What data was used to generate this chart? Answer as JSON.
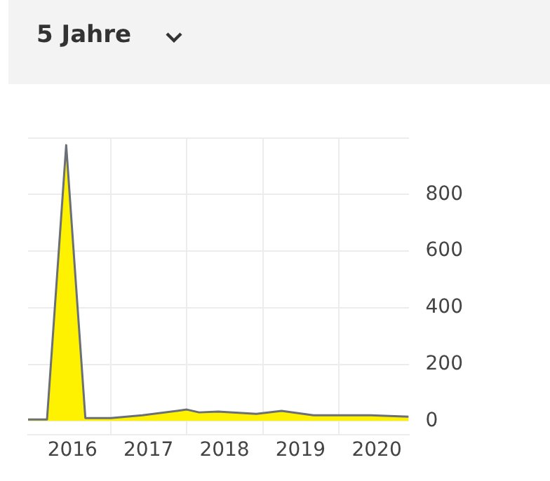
{
  "chart_data": {
    "type": "area",
    "title": "5 Jahre",
    "x": [
      "2015-12",
      "2016-03",
      "2016-06",
      "2016-09",
      "2017-01",
      "2017-06",
      "2018-01",
      "2018-03",
      "2018-06",
      "2018-12",
      "2019-04",
      "2019-09",
      "2020-01",
      "2020-06",
      "2020-12"
    ],
    "series": [
      {
        "color": "#fff200",
        "values": [
          5,
          5,
          975,
          10,
          10,
          20,
          40,
          30,
          33,
          25,
          35,
          20,
          20,
          20,
          15
        ]
      }
    ],
    "xlim": [
      "2015-12",
      "2020-12"
    ],
    "xticks": [
      {
        "value": "2016-07",
        "label": "2016"
      },
      {
        "value": "2017-01",
        "label": null
      },
      {
        "value": "2017-07",
        "label": "2017"
      },
      {
        "value": "2018-01",
        "label": null
      },
      {
        "value": "2018-07",
        "label": "2018"
      },
      {
        "value": "2019-01",
        "label": null
      },
      {
        "value": "2019-07",
        "label": "2019"
      },
      {
        "value": "2020-01",
        "label": null
      },
      {
        "value": "2020-07",
        "label": "2020"
      }
    ],
    "ylim": [
      -50,
      1000
    ],
    "yticks": [
      0,
      200,
      400,
      600,
      800,
      {
        "value": 1000,
        "label": null
      }
    ],
    "grid": true,
    "legend": false,
    "marker": "none",
    "line_style": "solid"
  }
}
